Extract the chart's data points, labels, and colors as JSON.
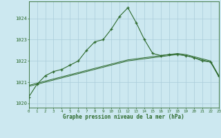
{
  "x": [
    0,
    1,
    2,
    3,
    4,
    5,
    6,
    7,
    8,
    9,
    10,
    11,
    12,
    13,
    14,
    15,
    16,
    17,
    18,
    19,
    20,
    21,
    22,
    23
  ],
  "y_main": [
    1020.3,
    1020.9,
    1021.3,
    1021.5,
    1021.6,
    1021.8,
    1022.0,
    1022.5,
    1022.9,
    1023.0,
    1023.5,
    1024.1,
    1024.5,
    1023.8,
    1023.0,
    1022.35,
    1022.25,
    1022.3,
    1022.3,
    1022.25,
    1022.15,
    1022.0,
    1021.95,
    1021.3
  ],
  "y_smooth1": [
    1020.85,
    1020.95,
    1021.05,
    1021.15,
    1021.25,
    1021.35,
    1021.45,
    1021.55,
    1021.65,
    1021.75,
    1021.85,
    1021.95,
    1022.05,
    1022.1,
    1022.15,
    1022.2,
    1022.25,
    1022.3,
    1022.35,
    1022.3,
    1022.2,
    1022.1,
    1022.0,
    1021.3
  ],
  "y_smooth2": [
    1020.8,
    1020.9,
    1021.0,
    1021.1,
    1021.2,
    1021.3,
    1021.4,
    1021.5,
    1021.6,
    1021.7,
    1021.8,
    1021.9,
    1022.0,
    1022.05,
    1022.1,
    1022.15,
    1022.2,
    1022.25,
    1022.3,
    1022.25,
    1022.15,
    1022.05,
    1021.95,
    1021.25
  ],
  "line_color": "#2d6a2d",
  "bg_color": "#cce8f0",
  "grid_color": "#aaccda",
  "xlabel": "Graphe pression niveau de la mer (hPa)",
  "ylim": [
    1019.8,
    1024.8
  ],
  "yticks": [
    1020,
    1021,
    1022,
    1023,
    1024
  ],
  "xlim": [
    0,
    23
  ],
  "xticks": [
    0,
    1,
    2,
    3,
    4,
    5,
    6,
    7,
    8,
    9,
    10,
    11,
    12,
    13,
    14,
    15,
    16,
    17,
    18,
    19,
    20,
    21,
    22,
    23
  ]
}
